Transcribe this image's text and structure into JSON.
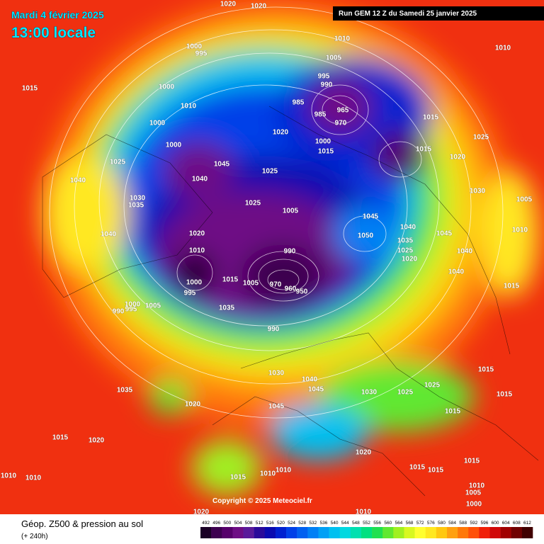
{
  "header": {
    "date": "Mardi 4 février 2025",
    "time": "13:00 locale",
    "run": "Run GEM 12 Z du Samedi 25 janvier 2025"
  },
  "footer": {
    "title": "Géop. Z500 & pression au sol",
    "subtitle": "(+ 240h)",
    "copyright": "Copyright © 2025 Meteociel.fr"
  },
  "legend": {
    "levels": [
      492,
      496,
      500,
      504,
      508,
      512,
      516,
      520,
      524,
      528,
      532,
      536,
      540,
      544,
      548,
      552,
      556,
      560,
      564,
      568,
      572,
      576,
      580,
      584,
      588,
      592,
      596,
      600,
      604,
      608,
      612
    ],
    "colors": [
      "#1a0026",
      "#3d0050",
      "#56006b",
      "#6e0e85",
      "#5a1a9a",
      "#2a0a9a",
      "#0a0ab0",
      "#0020d0",
      "#0040e8",
      "#0060f0",
      "#0080f5",
      "#00a0f5",
      "#00c0f0",
      "#00d8e0",
      "#00e0b0",
      "#00e080",
      "#20e050",
      "#60e830",
      "#a0f020",
      "#d8f820",
      "#ffff30",
      "#ffe820",
      "#ffc810",
      "#ffa010",
      "#ff7808",
      "#ff5008",
      "#f02008",
      "#d00808",
      "#a00000",
      "#700000",
      "#400000"
    ]
  },
  "pressure_labels": [
    1020,
    1020,
    1010,
    1010,
    1015,
    1000,
    995,
    1000,
    1010,
    1000,
    1000,
    1025,
    1040,
    1040,
    1045,
    1025,
    1020,
    1005,
    995,
    990,
    985,
    985,
    965,
    970,
    1015,
    1025,
    1015,
    1020,
    1000,
    1015,
    1030,
    1005,
    1030,
    1035,
    1025,
    1005,
    1045,
    1050,
    1040,
    1045,
    1010,
    1040,
    1020,
    1010,
    1035,
    1025,
    1020,
    1040,
    1040,
    990,
    970,
    960,
    950,
    1015,
    1005,
    1000,
    995,
    1000,
    1005,
    995,
    990,
    1035,
    1015,
    990,
    1030,
    1040,
    1045,
    1030,
    1025,
    1025,
    1015,
    1035,
    1020,
    1045,
    1015,
    1015,
    1015,
    1020,
    1020,
    1015,
    1015,
    1015,
    1015,
    1010,
    1010,
    1010,
    1010,
    1010,
    1005,
    1000,
    1020,
    1010
  ]
}
